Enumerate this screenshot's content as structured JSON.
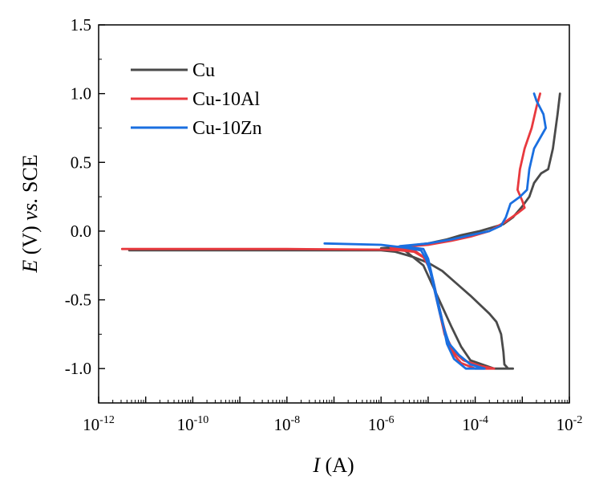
{
  "chart_data": {
    "type": "line",
    "title": "",
    "xlabel_var": "I",
    "xlabel_unit": " (A)",
    "ylabel_var": "E",
    "ylabel_unit": " (V)",
    "ylabel_vs": "vs.",
    "ylabel_ref": "SCE",
    "xscale": "log",
    "xlim_exp": [
      -12,
      -2
    ],
    "ylim": [
      -1.25,
      1.5
    ],
    "x_ticks": [
      {
        "base": "10",
        "exp": "-12",
        "value": -12
      },
      {
        "base": "10",
        "exp": "-10",
        "value": -10
      },
      {
        "base": "10",
        "exp": "-8",
        "value": -8
      },
      {
        "base": "10",
        "exp": "-6",
        "value": -6
      },
      {
        "base": "10",
        "exp": "-4",
        "value": -4
      },
      {
        "base": "10",
        "exp": "-2",
        "value": -2
      }
    ],
    "y_ticks": [
      {
        "label": "1.5",
        "value": 1.5
      },
      {
        "label": "1.0",
        "value": 1.0
      },
      {
        "label": "0.5",
        "value": 0.5
      },
      {
        "label": "0.0",
        "value": 0.0
      },
      {
        "label": "-0.5",
        "value": -0.5
      },
      {
        "label": "-1.0",
        "value": -1.0
      }
    ],
    "legend_position": "top-left",
    "series": [
      {
        "name": "Cu",
        "color": "#4a4a4a",
        "points": [
          [
            -11.35,
            -0.14
          ],
          [
            -8,
            -0.14
          ],
          [
            -6,
            -0.14
          ],
          [
            -5.7,
            -0.15
          ],
          [
            -5.5,
            -0.17
          ],
          [
            -5.3,
            -0.19
          ],
          [
            -5.0,
            -0.23
          ],
          [
            -4.7,
            -0.29
          ],
          [
            -4.4,
            -0.38
          ],
          [
            -4.1,
            -0.47
          ],
          [
            -3.7,
            -0.6
          ],
          [
            -3.55,
            -0.66
          ],
          [
            -3.45,
            -0.75
          ],
          [
            -3.4,
            -0.88
          ],
          [
            -3.38,
            -0.97
          ],
          [
            -3.3,
            -1.0
          ],
          [
            -3.2,
            -1.0
          ],
          [
            -3.4,
            -1.0
          ],
          [
            -3.6,
            -1.0
          ],
          [
            -4.1,
            -0.94
          ],
          [
            -4.3,
            -0.84
          ],
          [
            -4.5,
            -0.7
          ],
          [
            -4.7,
            -0.55
          ],
          [
            -4.9,
            -0.4
          ],
          [
            -5.1,
            -0.25
          ],
          [
            -5.5,
            -0.14
          ],
          [
            -6,
            -0.125
          ],
          [
            -5.5,
            -0.11
          ],
          [
            -5,
            -0.09
          ],
          [
            -4.6,
            -0.06
          ],
          [
            -4.3,
            -0.03
          ],
          [
            -3.9,
            0.0
          ],
          [
            -3.4,
            0.05
          ],
          [
            -3.2,
            0.1
          ],
          [
            -3.0,
            0.18
          ],
          [
            -2.85,
            0.25
          ],
          [
            -2.75,
            0.35
          ],
          [
            -2.6,
            0.42
          ],
          [
            -2.45,
            0.45
          ],
          [
            -2.35,
            0.6
          ],
          [
            -2.25,
            0.85
          ],
          [
            -2.2,
            1.0
          ]
        ]
      },
      {
        "name": "Cu-10Al",
        "color": "#e8393e",
        "points": [
          [
            -11.5,
            -0.13
          ],
          [
            -8,
            -0.13
          ],
          [
            -6,
            -0.135
          ],
          [
            -5.6,
            -0.14
          ],
          [
            -5.3,
            -0.15
          ],
          [
            -5.1,
            -0.19
          ],
          [
            -5.0,
            -0.25
          ],
          [
            -4.9,
            -0.35
          ],
          [
            -4.8,
            -0.5
          ],
          [
            -4.7,
            -0.65
          ],
          [
            -4.6,
            -0.78
          ],
          [
            -4.45,
            -0.88
          ],
          [
            -4.25,
            -0.94
          ],
          [
            -3.9,
            -0.98
          ],
          [
            -3.6,
            -1.0
          ],
          [
            -4.0,
            -1.0
          ],
          [
            -4.3,
            -0.96
          ],
          [
            -4.5,
            -0.88
          ],
          [
            -4.65,
            -0.75
          ],
          [
            -4.75,
            -0.6
          ],
          [
            -4.85,
            -0.45
          ],
          [
            -4.95,
            -0.3
          ],
          [
            -5.05,
            -0.2
          ],
          [
            -5.3,
            -0.14
          ],
          [
            -5.8,
            -0.12
          ],
          [
            -5.0,
            -0.1
          ],
          [
            -4.5,
            -0.07
          ],
          [
            -4.1,
            -0.04
          ],
          [
            -3.7,
            0.0
          ],
          [
            -3.35,
            0.07
          ],
          [
            -3.1,
            0.13
          ],
          [
            -2.95,
            0.17
          ],
          [
            -3.0,
            0.22
          ],
          [
            -3.1,
            0.3
          ],
          [
            -3.05,
            0.45
          ],
          [
            -2.95,
            0.6
          ],
          [
            -2.8,
            0.75
          ],
          [
            -2.7,
            0.9
          ],
          [
            -2.62,
            1.0
          ]
        ]
      },
      {
        "name": "Cu-10Zn",
        "color": "#1a6fe0",
        "points": [
          [
            -7.2,
            -0.09
          ],
          [
            -6,
            -0.1
          ],
          [
            -5.5,
            -0.12
          ],
          [
            -5.15,
            -0.14
          ],
          [
            -5.05,
            -0.2
          ],
          [
            -4.95,
            -0.3
          ],
          [
            -4.85,
            -0.45
          ],
          [
            -4.75,
            -0.6
          ],
          [
            -4.65,
            -0.72
          ],
          [
            -4.55,
            -0.82
          ],
          [
            -4.35,
            -0.9
          ],
          [
            -4.1,
            -0.97
          ],
          [
            -3.8,
            -1.0
          ],
          [
            -4.2,
            -1.0
          ],
          [
            -4.45,
            -0.93
          ],
          [
            -4.6,
            -0.82
          ],
          [
            -4.7,
            -0.65
          ],
          [
            -4.8,
            -0.5
          ],
          [
            -4.9,
            -0.35
          ],
          [
            -5.0,
            -0.2
          ],
          [
            -5.1,
            -0.13
          ],
          [
            -5.6,
            -0.11
          ],
          [
            -5.0,
            -0.09
          ],
          [
            -4.5,
            -0.06
          ],
          [
            -4.1,
            -0.03
          ],
          [
            -3.7,
            0.0
          ],
          [
            -3.45,
            0.04
          ],
          [
            -3.35,
            0.1
          ],
          [
            -3.25,
            0.2
          ],
          [
            -3.05,
            0.25
          ],
          [
            -2.9,
            0.3
          ],
          [
            -2.85,
            0.45
          ],
          [
            -2.75,
            0.6
          ],
          [
            -2.5,
            0.75
          ],
          [
            -2.55,
            0.85
          ],
          [
            -2.7,
            0.95
          ],
          [
            -2.75,
            1.0
          ]
        ]
      }
    ]
  }
}
